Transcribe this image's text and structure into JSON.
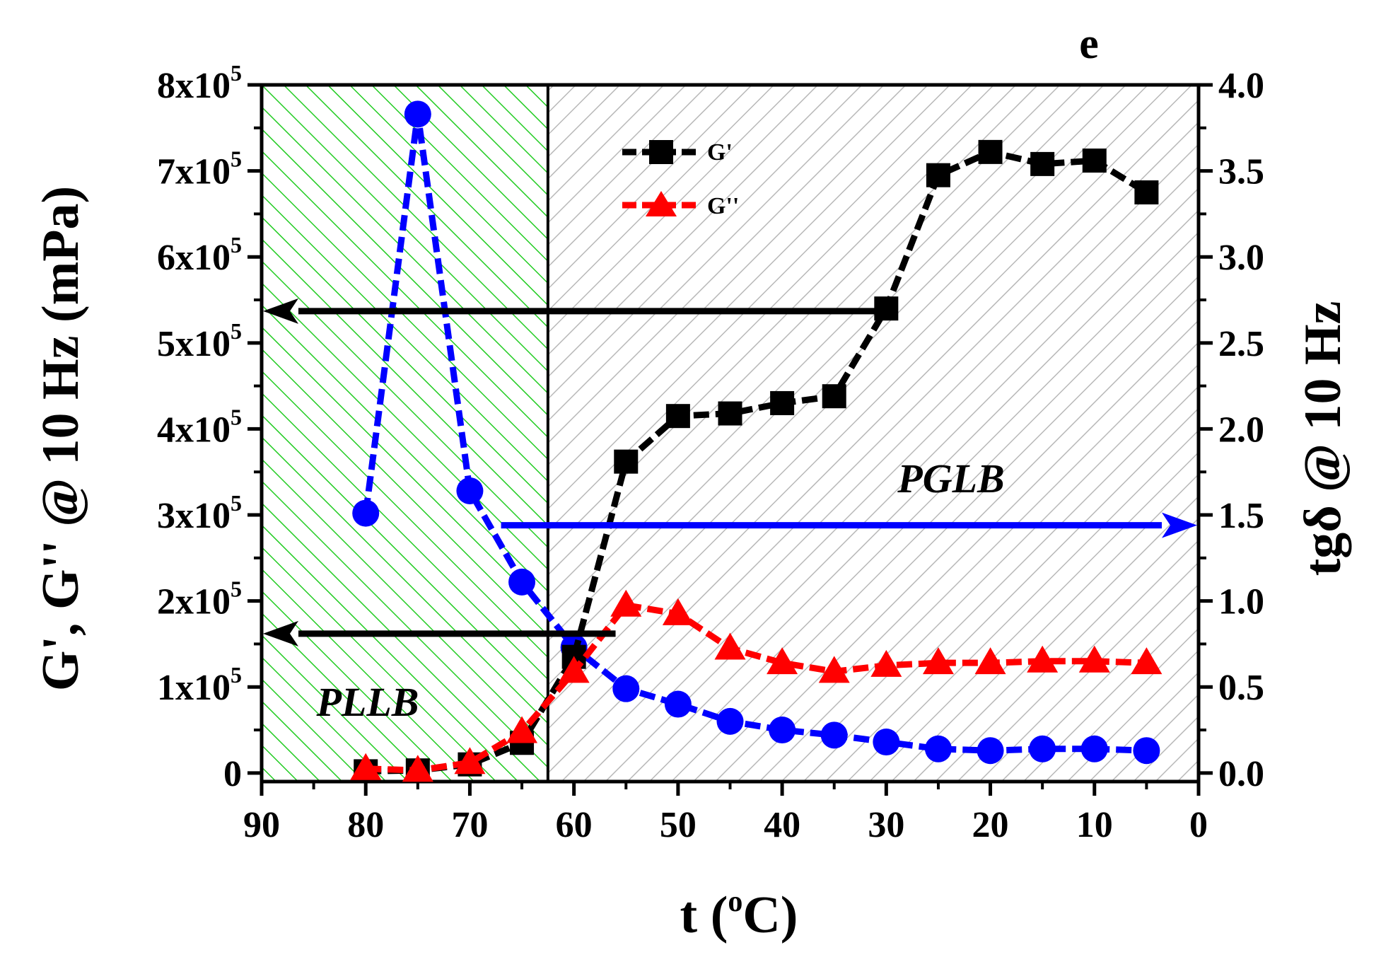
{
  "panel_label": "e",
  "colors": {
    "g_prime": "#000000",
    "g_double_prime": "#ff0000",
    "tan_delta": "#0000ff",
    "plla_region": "#00cc00",
    "pglb_region": "#b0b0b0"
  },
  "chart_data": {
    "type": "line",
    "title": "",
    "xlabel": "t (°C)",
    "xlabel_parts": {
      "prefix": "t (",
      "sup": "o",
      "suffix": "C)"
    },
    "ylabel": "G', G'' @ 10 Hz (mPa)",
    "y2label": "tgδ @ 10 Hz",
    "xlim": [
      90,
      0
    ],
    "ylim": [
      -10000,
      800000
    ],
    "y2lim": [
      -0.05,
      4.0
    ],
    "x_ticks": [
      "90",
      "80",
      "70",
      "60",
      "50",
      "40",
      "30",
      "20",
      "10",
      "0"
    ],
    "y_ticks": [
      {
        "base": "0",
        "exp": ""
      },
      {
        "base": "1x10",
        "exp": "5"
      },
      {
        "base": "2x10",
        "exp": "5"
      },
      {
        "base": "3x10",
        "exp": "5"
      },
      {
        "base": "4x10",
        "exp": "5"
      },
      {
        "base": "5x10",
        "exp": "5"
      },
      {
        "base": "6x10",
        "exp": "5"
      },
      {
        "base": "7x10",
        "exp": "5"
      },
      {
        "base": "8x10",
        "exp": "5"
      }
    ],
    "y2_ticks": [
      "0.0",
      "0.5",
      "1.0",
      "1.5",
      "2.0",
      "2.5",
      "3.0",
      "3.5",
      "4.0"
    ],
    "regions": [
      {
        "label": "PLLB",
        "x_from": 90,
        "x_to": 62.5
      },
      {
        "label": "PGLB",
        "x_from": 62.5,
        "x_to": 0
      }
    ],
    "legend": [
      {
        "name": "G'",
        "marker": "square"
      },
      {
        "name": "G''",
        "marker": "triangle"
      }
    ],
    "series": [
      {
        "name": "G'",
        "axis": "left",
        "marker": "square",
        "x": [
          80,
          75,
          70,
          65,
          60,
          55,
          50,
          45,
          40,
          35,
          30,
          25,
          20,
          15,
          10,
          5
        ],
        "y": [
          2000,
          3000,
          10000,
          35000,
          135000,
          362000,
          415000,
          418000,
          430000,
          438000,
          540000,
          695000,
          722000,
          708000,
          712000,
          675000
        ]
      },
      {
        "name": "G''",
        "axis": "left",
        "marker": "triangle",
        "x": [
          80,
          75,
          70,
          65,
          60,
          55,
          50,
          45,
          40,
          35,
          30,
          25,
          20,
          15,
          10,
          5
        ],
        "y": [
          5000,
          3000,
          12000,
          48000,
          118000,
          195000,
          185000,
          145000,
          128000,
          118000,
          125000,
          128000,
          128000,
          130000,
          130000,
          128000
        ]
      },
      {
        "name": "tgδ",
        "axis": "right",
        "marker": "circle",
        "x": [
          80,
          75,
          70,
          65,
          60,
          55,
          50,
          45,
          40,
          35,
          30,
          25,
          20,
          15,
          10,
          5
        ],
        "y": [
          1.51,
          3.83,
          1.64,
          1.11,
          0.73,
          0.49,
          0.4,
          0.3,
          0.25,
          0.22,
          0.18,
          0.14,
          0.13,
          0.14,
          0.14,
          0.13
        ]
      }
    ],
    "arrows": [
      {
        "series": "G'",
        "from_x": 30,
        "to": "left",
        "y": 537000
      },
      {
        "series": "G'",
        "from_x": 56,
        "to": "left",
        "y": 162000
      },
      {
        "series": "tgδ",
        "from_x": 67,
        "to": "right",
        "y": 1.44
      }
    ]
  }
}
